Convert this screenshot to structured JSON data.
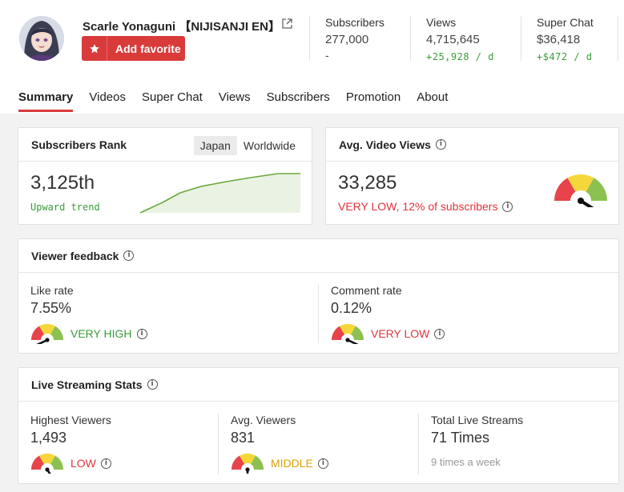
{
  "channel": {
    "name": "Scarle Yonaguni 【NIJISANJI EN】",
    "favorite_label": "Add favorite"
  },
  "stats": {
    "subscribers": {
      "label": "Subscribers",
      "value": "277,000",
      "delta": "-"
    },
    "views": {
      "label": "Views",
      "value": "4,715,645",
      "delta": "+25,928 / d"
    },
    "superchat": {
      "label": "Super Chat",
      "value": "$36,418",
      "delta": "+$472 / d"
    }
  },
  "tabs": [
    {
      "label": "Summary",
      "active": true
    },
    {
      "label": "Videos"
    },
    {
      "label": "Super Chat"
    },
    {
      "label": "Views"
    },
    {
      "label": "Subscribers"
    },
    {
      "label": "Promotion"
    },
    {
      "label": "About"
    }
  ],
  "rank": {
    "title": "Subscribers Rank",
    "toggle": [
      "Japan",
      "Worldwide"
    ],
    "selected": "Japan",
    "value": "3,125th",
    "trend": "Upward trend"
  },
  "avg_views": {
    "title": "Avg. Video Views",
    "value": "33,285",
    "status": "VERY LOW, 12% of subscribers",
    "gauge_level": 0.18
  },
  "feedback": {
    "title": "Viewer feedback",
    "like": {
      "label": "Like rate",
      "value": "7.55%",
      "status": "VERY HIGH",
      "gauge_level": 0.86
    },
    "comment": {
      "label": "Comment rate",
      "value": "0.12%",
      "status": "VERY LOW",
      "gauge_level": 0.14
    }
  },
  "live": {
    "title": "Live Streaming Stats",
    "highest": {
      "label": "Highest Viewers",
      "value": "1,493",
      "status": "LOW",
      "gauge_level": 0.32
    },
    "avg": {
      "label": "Avg. Viewers",
      "value": "831",
      "status": "MIDDLE",
      "gauge_level": 0.5
    },
    "total": {
      "label": "Total Live Streams",
      "value": "71 Times",
      "sub": "9 times a week"
    }
  },
  "colors": {
    "accent_red": "#d93a3a",
    "good_green": "#3a9d3a",
    "mid_yellow": "#d9a400",
    "bad_red": "#e0343c",
    "gauge_red": "#e8434a",
    "gauge_yellow": "#f5d73b",
    "gauge_green": "#8cc152"
  },
  "icons": [
    "star-icon",
    "external-link-icon",
    "info-icon",
    "gauge-icon"
  ]
}
